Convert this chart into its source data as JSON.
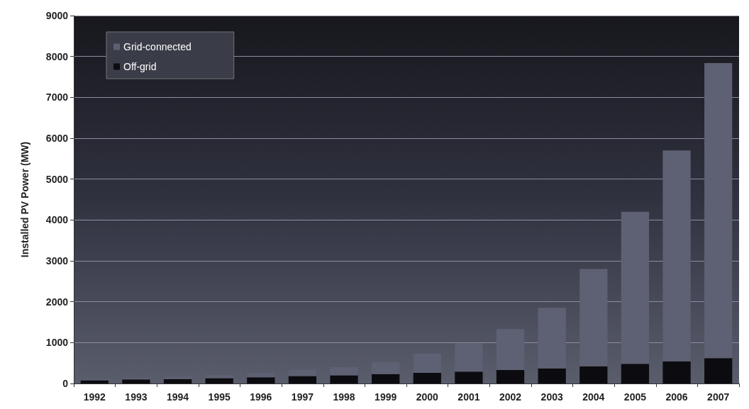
{
  "chart_data": {
    "type": "bar",
    "ylabel": "Installed PV Power (MW)",
    "categories": [
      "1992",
      "1993",
      "1994",
      "1995",
      "1996",
      "1997",
      "1998",
      "1999",
      "2000",
      "2001",
      "2002",
      "2003",
      "2004",
      "2005",
      "2006",
      "2007"
    ],
    "series": [
      {
        "name": "Off-grid",
        "color": "#0c0c10",
        "values": [
          80,
          100,
          110,
          130,
          150,
          180,
          200,
          230,
          260,
          290,
          330,
          370,
          420,
          480,
          540,
          620
        ]
      },
      {
        "name": "Grid-connected",
        "color": "#5e6173",
        "values": [
          30,
          40,
          60,
          80,
          100,
          150,
          200,
          290,
          470,
          690,
          1000,
          1480,
          2380,
          3720,
          5160,
          7220
        ]
      }
    ],
    "stacked": true,
    "ylim": [
      0,
      9000
    ],
    "yticks": [
      0,
      1000,
      2000,
      3000,
      4000,
      5000,
      6000,
      7000,
      8000,
      9000
    ],
    "grid": "y",
    "legend": "top left"
  }
}
